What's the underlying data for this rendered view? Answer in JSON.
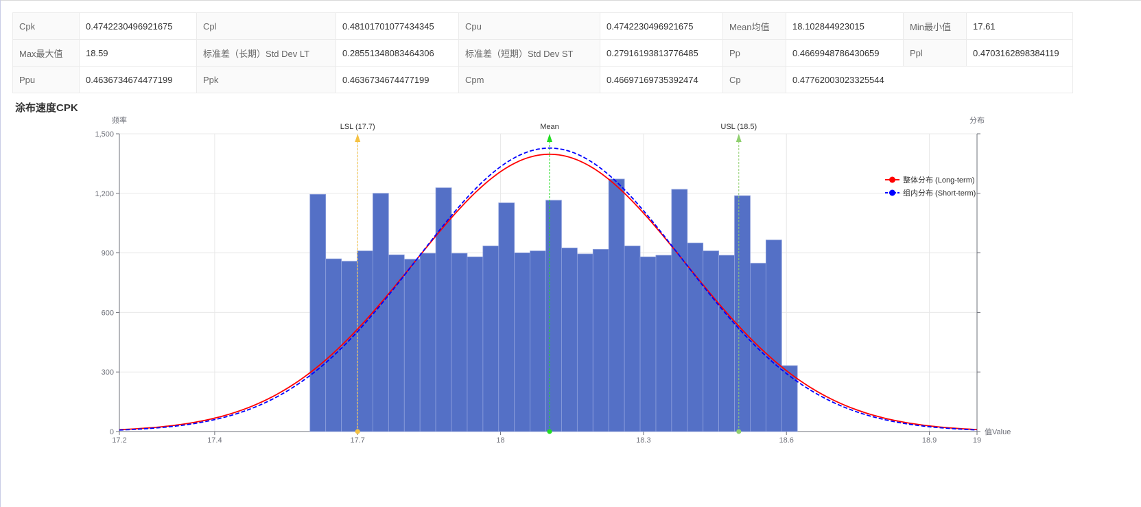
{
  "stats_table": {
    "rows": [
      [
        {
          "label": "Cpk",
          "value": "0.4742230496921675"
        },
        {
          "label": "Cpl",
          "value": "0.48101701077434345"
        },
        {
          "label": "Cpu",
          "value": "0.4742230496921675"
        },
        {
          "label": "Mean均值",
          "value": "18.102844923015"
        },
        {
          "label": "Min最小值",
          "value": "17.61"
        }
      ],
      [
        {
          "label": "Max最大值",
          "value": "18.59"
        },
        {
          "label": "标准差（长期）Std Dev LT",
          "value": "0.28551348083464306"
        },
        {
          "label": "标准差（短期）Std Dev ST",
          "value": "0.27916193813776485"
        },
        {
          "label": "Pp",
          "value": "0.4669948786430659"
        },
        {
          "label": "Ppl",
          "value": "0.4703162898384119"
        }
      ],
      [
        {
          "label": "Ppu",
          "value": "0.4636734674477199"
        },
        {
          "label": "Ppk",
          "value": "0.4636734674477199"
        },
        {
          "label": "Cpm",
          "value": "0.46697169735392474"
        },
        {
          "label": "Cp",
          "value": "0.47762003023325544"
        }
      ]
    ]
  },
  "chart_title": "涂布速度CPK",
  "chart_data": {
    "type": "bar",
    "left_axis_name": "频率",
    "right_axis_name": "分布",
    "x_axis_name": "值Value",
    "xlim": [
      17.2,
      19
    ],
    "ylim": [
      0,
      1500
    ],
    "x_ticks": [
      "17.2",
      "17.4",
      "17.7",
      "18",
      "18.3",
      "18.6",
      "18.9",
      "19"
    ],
    "x_tick_values": [
      17.2,
      17.4,
      17.7,
      18.0,
      18.3,
      18.6,
      18.9,
      19.0
    ],
    "y_ticks": [
      "0",
      "300",
      "600",
      "900",
      "1,200",
      "1,500"
    ],
    "y_tick_values": [
      0,
      300,
      600,
      900,
      1200,
      1500
    ],
    "grid": true,
    "legend_position": "top-right",
    "histogram": {
      "bin_start": 17.6,
      "bin_width": 0.033,
      "values": [
        1195,
        870,
        858,
        910,
        1200,
        890,
        868,
        898,
        1228,
        898,
        880,
        935,
        1152,
        900,
        910,
        1165,
        925,
        895,
        918,
        1272,
        935,
        880,
        888,
        1220,
        950,
        910,
        888,
        1188,
        848,
        965,
        332
      ]
    },
    "series": [
      {
        "name": "整体分布 (Long-term)",
        "type": "normal",
        "mean": 18.102844923015,
        "std": 0.28551348083464306,
        "peak": 1397,
        "color": "#ff0000",
        "dash": false
      },
      {
        "name": "组内分布 (Short-term)",
        "type": "normal",
        "mean": 18.102844923015,
        "std": 0.27916193813776485,
        "peak": 1428,
        "color": "#0000ff",
        "dash": true
      }
    ],
    "mark_lines": [
      {
        "label": "LSL (17.7)",
        "x": 17.7,
        "color": "#f5c242"
      },
      {
        "label": "Mean",
        "x": 18.102844923015,
        "color": "#22dd22"
      },
      {
        "label": "USL (18.5)",
        "x": 18.5,
        "color": "#8fcf6f"
      }
    ],
    "bar_color": "#5470c6"
  }
}
